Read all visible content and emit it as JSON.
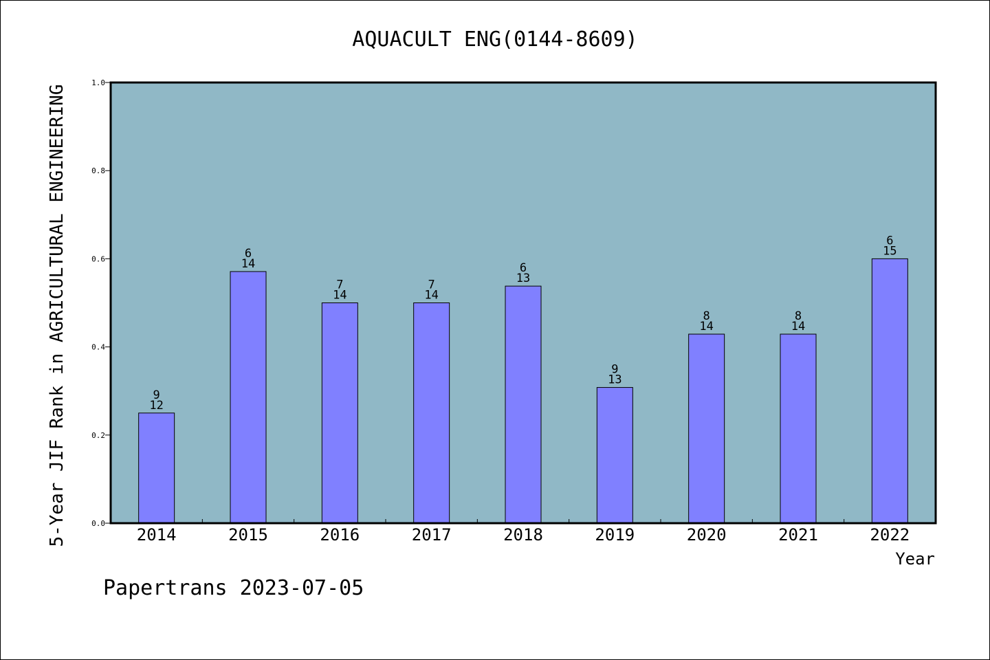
{
  "chart_data": {
    "type": "bar",
    "title": "AQUACULT ENG(0144-8609)",
    "xlabel": "Year",
    "ylabel": "5-Year JIF Rank in AGRICULTURAL ENGINEERING",
    "categories": [
      "2014",
      "2015",
      "2016",
      "2017",
      "2018",
      "2019",
      "2020",
      "2021",
      "2022"
    ],
    "values": [
      0.25,
      0.571,
      0.5,
      0.5,
      0.538,
      0.308,
      0.429,
      0.429,
      0.6
    ],
    "ranks": [
      "9",
      "6",
      "7",
      "7",
      "6",
      "9",
      "8",
      "8",
      "6"
    ],
    "totals": [
      "12",
      "14",
      "14",
      "14",
      "13",
      "13",
      "14",
      "14",
      "15"
    ],
    "ylim": [
      0,
      1.0
    ],
    "yticks": [
      "0.0",
      "0.2",
      "0.4",
      "0.6",
      "0.8",
      "1.0"
    ],
    "grid": false,
    "colors": {
      "plot_background": "#90b8c6",
      "bar_fill": "#8080ff",
      "bar_stroke": "#000000"
    }
  },
  "footer": "Papertrans 2023-07-05"
}
